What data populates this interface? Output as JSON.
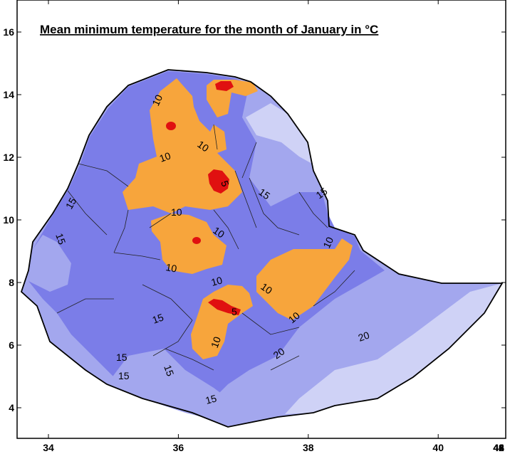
{
  "title": "Mean minimum temperature for the month of January in °C",
  "x_ticks": [
    {
      "value": 34,
      "label": "34"
    },
    {
      "value": 36,
      "label": "36"
    },
    {
      "value": 38,
      "label": "38"
    },
    {
      "value": 40,
      "label": "40"
    },
    {
      "value": 42,
      "label": "42"
    },
    {
      "value": 44,
      "label": "44"
    },
    {
      "value": 46,
      "label": "46"
    },
    {
      "value": 48,
      "label": "48"
    }
  ],
  "y_ticks": [
    {
      "value": 4,
      "label": "4"
    },
    {
      "value": 6,
      "label": "6"
    },
    {
      "value": 8,
      "label": "8"
    },
    {
      "value": 10,
      "label": "10"
    },
    {
      "value": 12,
      "label": "12"
    },
    {
      "value": 14,
      "label": "14"
    },
    {
      "value": 16,
      "label": "16"
    }
  ],
  "contour_labels": [
    "10",
    "10",
    "10",
    "10",
    "10",
    "10",
    "10",
    "10",
    "10",
    "10",
    "10",
    "5",
    "5",
    "15",
    "15",
    "15",
    "15",
    "15",
    "15",
    "15",
    "15",
    "15",
    "20",
    "20"
  ],
  "colors": {
    "below_5": "#e01010",
    "from_5_to_10": "#f7a53c",
    "from_10_to_15": "#7b7de8",
    "from_15_to_20": "#a3a7ee",
    "above_20": "#cfd2f6"
  }
}
